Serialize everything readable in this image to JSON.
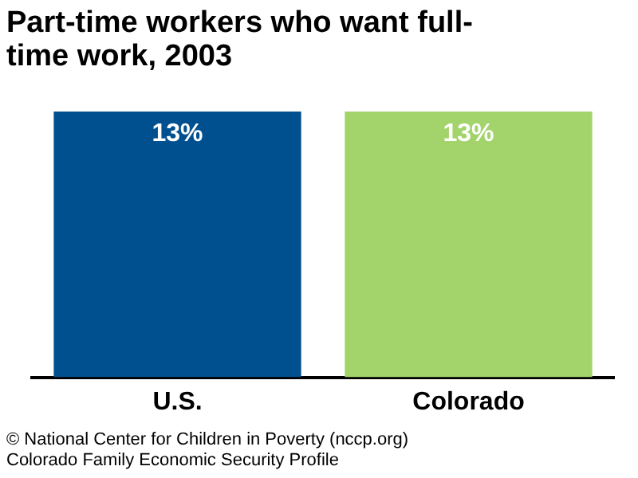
{
  "chart_data": {
    "type": "bar",
    "title": "Part-time workers who want full-time work, 2003",
    "categories": [
      "U.S.",
      "Colorado"
    ],
    "values": [
      13,
      13
    ],
    "value_labels": [
      "13%",
      "13%"
    ],
    "colors": [
      "#00508f",
      "#a3d36b"
    ],
    "annotations": [
      "© National Center for Children in Poverty (nccp.org)",
      "Colorado Family Economic Security Profile"
    ],
    "grid": false,
    "legend": false
  }
}
